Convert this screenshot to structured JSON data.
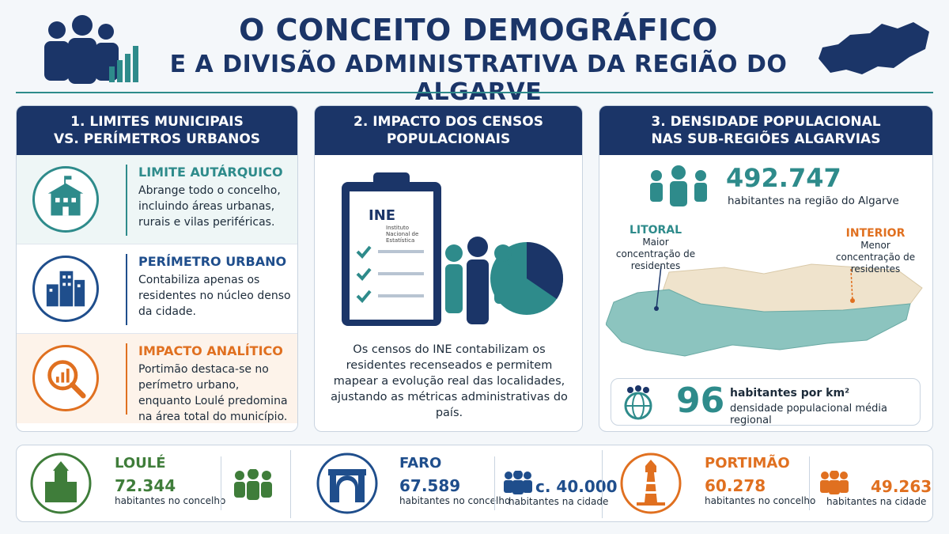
{
  "header": {
    "title_line1": "O CONCEITO DEMOGRÁFICO",
    "title_line2": "E A DIVISÃO ADMINISTRATIVA DA REGIÃO DO ALGARVE"
  },
  "panels": [
    {
      "title_line1": "1. LIMITES MUNICIPAIS",
      "title_line2": "VS. PERÍMETROS URBANOS",
      "items": [
        {
          "heading": "LIMITE AUTÁRQUICO",
          "text": "Abrange todo o concelho, incluindo áreas urbanas, rurais e vilas periféricas."
        },
        {
          "heading": "PERÍMETRO URBANO",
          "text": "Contabiliza apenas os residentes no núcleo denso da cidade."
        },
        {
          "heading": "IMPACTO ANALÍTICO",
          "text": "Portimão destaca-se no perímetro urbano, enquanto Loulé predomina na área total do município."
        }
      ]
    },
    {
      "title_line1": "2. IMPACTO DOS CENSOS",
      "title_line2": "POPULACIONAIS",
      "logo": "INE",
      "logo_sub": "Instituto Nacional de Estatística",
      "text": "Os censos do INE contabilizam os residentes recenseados e permitem mapear a evolução real das localidades, ajustando as métricas administrativas do país."
    },
    {
      "title_line1": "3. DENSIDADE POPULACIONAL",
      "title_line2": "NAS SUB-REGIÕES ALGARVIAS",
      "population": "492.747",
      "population_label": "habitantes na região do Algarve",
      "litoral": "LITORAL",
      "litoral_note": "Maior concentração de residentes",
      "interior": "INTERIOR",
      "interior_note": "Menor concentração de residentes",
      "density": "96",
      "density_unit": "habitantes por km²",
      "density_label": "densidade populacional média regional"
    }
  ],
  "cities": [
    {
      "name": "LOULÉ",
      "municipality": "72.344",
      "municipality_label": "habitantes no concelho"
    },
    {
      "name": "FARO",
      "municipality": "67.589",
      "municipality_label": "habitantes no concelho",
      "city": "c. 40.000",
      "city_label": "habitantes na cidade"
    },
    {
      "name": "PORTIMÃO",
      "municipality": "60.278",
      "municipality_label": "habitantes no concelho",
      "city": "49.263",
      "city_label": "habitantes na cidade"
    }
  ]
}
